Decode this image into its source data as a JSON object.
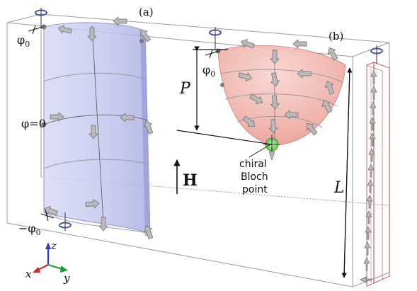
{
  "labels": {
    "panel_a": "(a)",
    "panel_b": "(b)",
    "phi0_top_left": "φ",
    "phi0_top_left_sub": "0",
    "phi0_b": "φ",
    "phi0_b_sub": "0",
    "phi_eq_zero": "φ=0",
    "minus_phi0": "−φ",
    "minus_phi0_sub": "0",
    "P": "P",
    "L": "L",
    "H": "H",
    "bloch_line1": "chiral",
    "bloch_line2": "Bloch",
    "bloch_line3": "point",
    "axis_z": "z",
    "axis_x": "x",
    "axis_y": "y"
  },
  "colors": {
    "cylinder_fill": "#c9cdf0",
    "paraboloid_fill": "#f2b9b3",
    "bloch_point": "#7bd36a",
    "rotation_marker": "#4c5ba8",
    "axis_z": "#2b3fc4",
    "axis_x": "#d22a2a",
    "axis_y": "#1e9a3a",
    "box_edges": "#9a9a9a",
    "wire_edges": "#c23a3a"
  }
}
